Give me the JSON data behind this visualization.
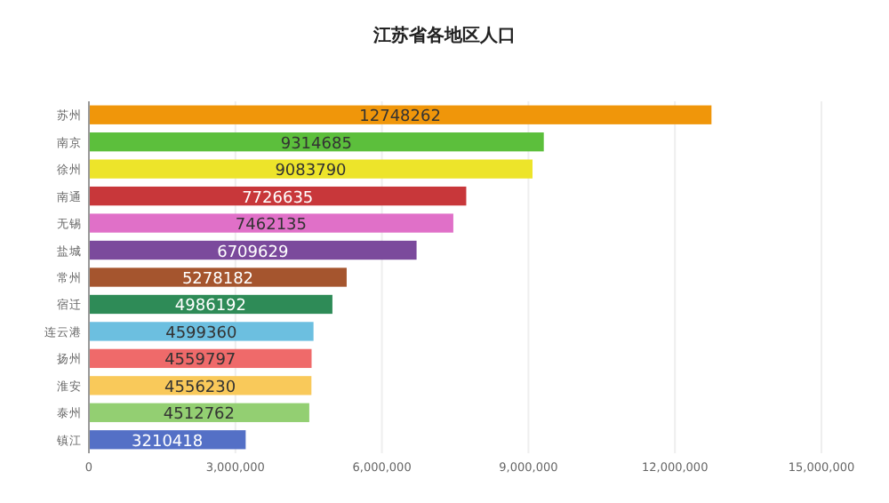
{
  "chart_data": {
    "type": "bar",
    "orientation": "horizontal",
    "title": "江苏省各地区人口",
    "categories": [
      "苏州",
      "南京",
      "徐州",
      "南通",
      "无锡",
      "盐城",
      "常州",
      "宿迁",
      "连云港",
      "扬州",
      "淮安",
      "泰州",
      "镇江"
    ],
    "values": [
      12748262,
      9314685,
      9083790,
      7726635,
      7462135,
      6709629,
      5278182,
      4986192,
      4599360,
      4559797,
      4556230,
      4512762,
      3210418
    ],
    "colors": [
      "#f0960a",
      "#5cbf3c",
      "#ede42a",
      "#c8373a",
      "#e070c8",
      "#7b4a9c",
      "#a5552e",
      "#2e8b57",
      "#6cbfe0",
      "#ef6a6a",
      "#f9c95a",
      "#93cf72",
      "#5470c6"
    ],
    "xlim": [
      0,
      15000000
    ],
    "xticks": [
      {
        "value": 0,
        "label": "0"
      },
      {
        "value": 3000000,
        "label": "3,000,000"
      },
      {
        "value": 6000000,
        "label": "6,000,000"
      },
      {
        "value": 9000000,
        "label": "9,000,000"
      },
      {
        "value": 12000000,
        "label": "12,000,000"
      },
      {
        "value": 15000000,
        "label": "15,000,000"
      }
    ],
    "grid": "x",
    "data_labels": true
  }
}
